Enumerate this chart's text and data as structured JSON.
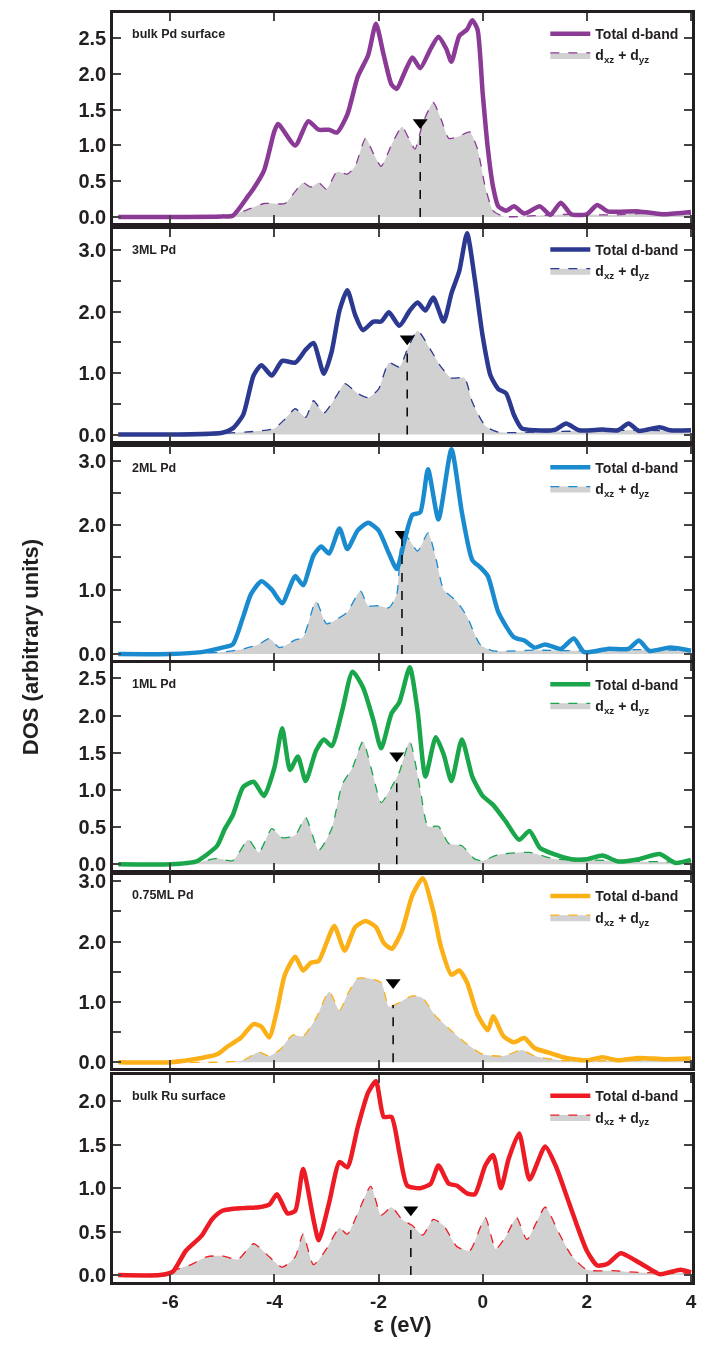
{
  "chart_data": [
    {
      "type": "line",
      "title": "bulk Pd surface",
      "legend": "top right",
      "tick_labels": "y",
      "xlim": [
        -7.1,
        4.02
      ],
      "xticks": [
        -6,
        -4,
        -2,
        0,
        2,
        4
      ],
      "ylim": [
        -0.08,
        2.85
      ],
      "yticks": [
        {
          "value": 0,
          "label": "0.0"
        },
        {
          "value": 0.5,
          "label": "0.5"
        },
        {
          "value": 1,
          "label": "1.0"
        },
        {
          "value": 1.5,
          "label": "1.5"
        },
        {
          "value": 2,
          "label": "2.0"
        },
        {
          "value": 2.5,
          "label": "2.5"
        }
      ],
      "ref_lines": [
        {
          "axis": "x",
          "value": -1.2,
          "color": "#000000",
          "line_style": "dashed"
        }
      ],
      "series": [
        {
          "type": "scatter",
          "marker": "triangle",
          "color": "#000000",
          "x": [
            -1.2
          ],
          "values": [
            1.32
          ]
        },
        {
          "name": "Total d-band",
          "color": "#8b3a96",
          "line_style": "solid",
          "x": [
            -7,
            -5,
            -4.8,
            -4.5,
            -4.4,
            -4.2,
            -4.0,
            -3.93,
            -3.6,
            -3.35,
            -3.15,
            -2.95,
            -2.8,
            -2.6,
            -2.4,
            -2.2,
            -2.05,
            -1.9,
            -1.75,
            -1.65,
            -1.5,
            -1.35,
            -1.2,
            -1.0,
            -0.85,
            -0.7,
            -0.6,
            -0.45,
            -0.3,
            -0.2,
            -0.1,
            0.0,
            0.1,
            0.2,
            0.3,
            0.45,
            0.6,
            0.8,
            1.1,
            1.3,
            1.5,
            1.7,
            2.0,
            2.2,
            2.4,
            3.0,
            3.5,
            4.0
          ],
          "values": [
            0,
            0.01,
            0.02,
            0.3,
            0.4,
            0.65,
            1.2,
            1.3,
            1.0,
            1.34,
            1.22,
            1.22,
            1.18,
            1.43,
            1.96,
            2.26,
            2.7,
            2.26,
            1.85,
            1.79,
            2.02,
            2.23,
            2.08,
            2.35,
            2.52,
            2.35,
            2.17,
            2.53,
            2.62,
            2.75,
            2.62,
            1.73,
            0.95,
            0.42,
            0.15,
            0.09,
            0.15,
            0.05,
            0.15,
            0.03,
            0.2,
            0.04,
            0.04,
            0.17,
            0.08,
            0.08,
            0.04,
            0.07
          ]
        },
        {
          "name": "d$_{xz}$ + d$_{yz}$",
          "type": "area",
          "color": "#8b3a96",
          "line_style": "dashed",
          "x": [
            -7,
            -5,
            -4.6,
            -4.2,
            -3.8,
            -3.6,
            -3.45,
            -3.3,
            -3.15,
            -3.0,
            -2.8,
            -2.6,
            -2.45,
            -2.25,
            -2.1,
            -1.95,
            -1.75,
            -1.55,
            -1.4,
            -1.3,
            -1.15,
            -0.95,
            -0.8,
            -0.65,
            -0.45,
            -0.25,
            -0.1,
            0.05,
            0.2,
            0.4,
            1.0,
            1.7,
            2.5,
            3.3,
            4.0
          ],
          "values": [
            0,
            0,
            0.08,
            0.19,
            0.19,
            0.36,
            0.48,
            0.42,
            0.48,
            0.39,
            0.63,
            0.6,
            0.71,
            1.1,
            0.89,
            0.71,
            1.01,
            1.26,
            1.07,
            0.95,
            1.31,
            1.6,
            1.37,
            1.1,
            1.13,
            1.19,
            0.95,
            0.42,
            0.09,
            0.01,
            0.02,
            0.04,
            0.03,
            0.06,
            0.04
          ]
        }
      ]
    },
    {
      "type": "line",
      "title": "3ML Pd",
      "legend": "top right",
      "tick_labels": "y",
      "xlim": [
        -7.1,
        4.02
      ],
      "xticks": [
        -6,
        -4,
        -2,
        0,
        2,
        4
      ],
      "ylim": [
        -0.1,
        3.35
      ],
      "yticks": [
        {
          "value": 0,
          "label": "0.0"
        },
        {
          "value": 0.5,
          "label": null
        },
        {
          "value": 1,
          "label": "1.0"
        },
        {
          "value": 1.5,
          "label": null
        },
        {
          "value": 2,
          "label": "2.0"
        },
        {
          "value": 2.5,
          "label": null
        },
        {
          "value": 3,
          "label": "3.0"
        }
      ],
      "ref_lines": [
        {
          "axis": "x",
          "value": -1.45,
          "color": "#000000",
          "line_style": "dashed"
        }
      ],
      "series": [
        {
          "type": "scatter",
          "marker": "triangle",
          "color": "#000000",
          "x": [
            -1.45
          ],
          "values": [
            1.56
          ]
        },
        {
          "name": "Total d-band",
          "color": "#2b3990",
          "line_style": "solid",
          "x": [
            -7,
            -5,
            -4.8,
            -4.6,
            -4.4,
            -4.25,
            -4.05,
            -3.85,
            -3.6,
            -3.4,
            -3.25,
            -3.05,
            -2.9,
            -2.75,
            -2.6,
            -2.45,
            -2.3,
            -2.1,
            -1.95,
            -1.8,
            -1.6,
            -1.4,
            -1.25,
            -1.1,
            -0.95,
            -0.75,
            -0.6,
            -0.45,
            -0.3,
            -0.15,
            0.0,
            0.15,
            0.3,
            0.45,
            0.6,
            0.75,
            1.0,
            1.4,
            1.6,
            1.85,
            2.3,
            2.6,
            2.8,
            3.0,
            3.4,
            3.6,
            4.0
          ],
          "values": [
            0,
            0.03,
            0.1,
            0.32,
            0.96,
            1.13,
            0.96,
            1.2,
            1.17,
            1.38,
            1.49,
            0.99,
            1.35,
            2.02,
            2.35,
            1.95,
            1.7,
            1.84,
            1.84,
            1.99,
            1.77,
            2.02,
            2.15,
            2.02,
            2.23,
            1.84,
            2.3,
            2.66,
            3.28,
            2.52,
            1.6,
            0.96,
            0.74,
            0.67,
            0.32,
            0.1,
            0.07,
            0.08,
            0.18,
            0.07,
            0.08,
            0.07,
            0.18,
            0.06,
            0.12,
            0.07,
            0.07
          ]
        },
        {
          "name": "d$_{xz}$ + d$_{yz}$",
          "type": "area",
          "color": "#2b3990",
          "line_style": "dashed",
          "x": [
            -7,
            -5,
            -4.4,
            -4.0,
            -3.8,
            -3.6,
            -3.4,
            -3.25,
            -3.05,
            -2.8,
            -2.65,
            -2.4,
            -2.2,
            -2.0,
            -1.8,
            -1.6,
            -1.45,
            -1.25,
            -1.0,
            -0.8,
            -0.6,
            -0.35,
            -0.2,
            0.05,
            0.3,
            1.0,
            2.0,
            3.0,
            4.0
          ],
          "values": [
            0,
            0.02,
            0.05,
            0.1,
            0.25,
            0.42,
            0.28,
            0.55,
            0.35,
            0.64,
            0.83,
            0.67,
            0.6,
            0.74,
            1.17,
            1.1,
            1.38,
            1.69,
            1.38,
            1.1,
            0.92,
            0.92,
            0.53,
            0.14,
            0.04,
            0.04,
            0.06,
            0.07,
            0.05
          ]
        }
      ]
    },
    {
      "type": "line",
      "title": "2ML Pd",
      "ylabel": "DOS (arbitrary units)",
      "legend": "top right",
      "tick_labels": "y",
      "xlim": [
        -7.1,
        4.02
      ],
      "xticks": [
        -6,
        -4,
        -2,
        0,
        2,
        4
      ],
      "ylim": [
        -0.1,
        3.22
      ],
      "yticks": [
        {
          "value": 0,
          "label": "0.0"
        },
        {
          "value": 0.5,
          "label": null
        },
        {
          "value": 1,
          "label": "1.0"
        },
        {
          "value": 1.5,
          "label": null
        },
        {
          "value": 2,
          "label": "2.0"
        },
        {
          "value": 2.5,
          "label": null
        },
        {
          "value": 3,
          "label": "3.0"
        }
      ],
      "ref_lines": [
        {
          "axis": "x",
          "value": -1.55,
          "color": "#000000",
          "line_style": "dashed"
        }
      ],
      "series": [
        {
          "type": "scatter",
          "marker": "triangle",
          "color": "#000000",
          "x": [
            -1.55
          ],
          "values": [
            1.86
          ]
        },
        {
          "name": "Total d-band",
          "color": "#1b8bd0",
          "line_style": "solid",
          "x": [
            -7,
            -6,
            -5.4,
            -5.0,
            -4.8,
            -4.6,
            -4.45,
            -4.25,
            -4.05,
            -3.85,
            -3.6,
            -3.45,
            -3.25,
            -3.1,
            -2.95,
            -2.75,
            -2.6,
            -2.4,
            -2.2,
            -2.0,
            -1.8,
            -1.65,
            -1.5,
            -1.35,
            -1.2,
            -1.05,
            -0.85,
            -0.6,
            -0.4,
            -0.2,
            -0.05,
            0.1,
            0.3,
            0.6,
            0.8,
            1.0,
            1.2,
            1.5,
            1.75,
            1.95,
            2.4,
            2.8,
            3.0,
            3.2,
            3.6,
            4.0
          ],
          "values": [
            0,
            0,
            0.03,
            0.1,
            0.15,
            0.58,
            0.93,
            1.13,
            1.0,
            0.79,
            1.21,
            1.07,
            1.53,
            1.67,
            1.56,
            1.95,
            1.63,
            1.92,
            2.04,
            1.92,
            1.56,
            1.32,
            1.77,
            2.16,
            2.2,
            2.87,
            2.09,
            3.18,
            2.2,
            1.46,
            1.35,
            1.21,
            0.65,
            0.26,
            0.21,
            0.1,
            0.15,
            0.08,
            0.24,
            0.03,
            0.08,
            0.08,
            0.21,
            0.05,
            0.1,
            0.05
          ]
        },
        {
          "name": "d$_{xz}$ + d$_{yz}$",
          "type": "area",
          "color": "#1b8bd0",
          "line_style": "dashed",
          "x": [
            -7,
            -5,
            -4.6,
            -4.3,
            -4.1,
            -3.9,
            -3.6,
            -3.45,
            -3.2,
            -3.0,
            -2.8,
            -2.6,
            -2.35,
            -2.2,
            -2.0,
            -1.8,
            -1.65,
            -1.55,
            -1.45,
            -1.25,
            -1.05,
            -0.9,
            -0.75,
            -0.5,
            -0.3,
            -0.05,
            0.2,
            1.0,
            2.0,
            3.0,
            4.0
          ],
          "values": [
            0,
            0.03,
            0.08,
            0.15,
            0.24,
            0.1,
            0.22,
            0.26,
            0.82,
            0.47,
            0.54,
            0.65,
            0.98,
            0.75,
            0.75,
            0.72,
            0.93,
            1.77,
            1.81,
            1.6,
            1.88,
            1.49,
            1.0,
            0.82,
            0.58,
            0.15,
            0.05,
            0.06,
            0.05,
            0.07,
            0.05
          ]
        }
      ]
    },
    {
      "type": "line",
      "title": "1ML Pd",
      "legend": "top right",
      "tick_labels": "y",
      "xlim": [
        -7.1,
        4.02
      ],
      "xticks": [
        -6,
        -4,
        -2,
        0,
        2,
        4
      ],
      "ylim": [
        -0.08,
        2.7
      ],
      "yticks": [
        {
          "value": 0,
          "label": "0.0"
        },
        {
          "value": 0.5,
          "label": "0.5"
        },
        {
          "value": 1,
          "label": "1.0"
        },
        {
          "value": 1.5,
          "label": "1.5"
        },
        {
          "value": 2,
          "label": "2.0"
        },
        {
          "value": 2.5,
          "label": "2.5"
        }
      ],
      "ref_lines": [
        {
          "axis": "x",
          "value": -1.65,
          "color": "#000000",
          "line_style": "dashed"
        }
      ],
      "series": [
        {
          "type": "scatter",
          "marker": "triangle",
          "color": "#000000",
          "x": [
            -1.65
          ],
          "values": [
            1.46
          ]
        },
        {
          "name": "Total d-band",
          "color": "#1aa64a",
          "line_style": "solid",
          "x": [
            -7,
            -6,
            -5.5,
            -5.3,
            -5.1,
            -4.95,
            -4.8,
            -4.6,
            -4.4,
            -4.2,
            -4.0,
            -3.85,
            -3.7,
            -3.55,
            -3.4,
            -3.2,
            -3.05,
            -2.9,
            -2.7,
            -2.5,
            -2.3,
            -2.1,
            -1.95,
            -1.75,
            -1.6,
            -1.4,
            -1.25,
            -1.1,
            -0.9,
            -0.75,
            -0.6,
            -0.4,
            -0.2,
            0.0,
            0.2,
            0.45,
            0.7,
            0.9,
            1.1,
            1.4,
            1.7,
            2.0,
            2.3,
            2.6,
            3.0,
            3.4,
            3.7,
            4.0
          ],
          "values": [
            0,
            0,
            0.04,
            0.13,
            0.25,
            0.48,
            0.66,
            1.04,
            1.11,
            0.92,
            1.3,
            1.83,
            1.27,
            1.45,
            1.12,
            1.53,
            1.68,
            1.59,
            2.06,
            2.59,
            2.38,
            1.94,
            1.56,
            2.03,
            2.18,
            2.65,
            2.06,
            1.18,
            1.71,
            1.48,
            1.12,
            1.68,
            1.18,
            0.92,
            0.8,
            0.57,
            0.33,
            0.45,
            0.22,
            0.13,
            0.07,
            0.07,
            0.12,
            0.04,
            0.07,
            0.14,
            0.02,
            0.06
          ]
        },
        {
          "name": "d$_{xz}$ + d$_{yz}$",
          "type": "area",
          "color": "#1aa64a",
          "line_style": "dashed",
          "x": [
            -7,
            -5.8,
            -5.4,
            -5.1,
            -4.8,
            -4.5,
            -4.3,
            -4.05,
            -3.85,
            -3.6,
            -3.4,
            -3.15,
            -2.9,
            -2.7,
            -2.5,
            -2.3,
            -2.1,
            -1.95,
            -1.75,
            -1.6,
            -1.4,
            -1.2,
            -1.05,
            -0.85,
            -0.65,
            -0.4,
            -0.15,
            0.0,
            0.3,
            0.9,
            1.4,
            2.0,
            3.0,
            4.0
          ],
          "values": [
            0,
            0,
            0.04,
            0.08,
            0.05,
            0.33,
            0.16,
            0.48,
            0.36,
            0.39,
            0.63,
            0.19,
            0.48,
            1.07,
            1.3,
            1.65,
            1.18,
            0.83,
            1.04,
            1.24,
            1.65,
            1.01,
            0.51,
            0.51,
            0.28,
            0.25,
            0.07,
            0.05,
            0.13,
            0.16,
            0.07,
            0.06,
            0.04,
            0.03
          ]
        }
      ]
    },
    {
      "type": "line",
      "title": "0.75ML Pd",
      "legend": "top right",
      "tick_labels": "y",
      "xlim": [
        -7.1,
        4.02
      ],
      "xticks": [
        -6,
        -4,
        -2,
        0,
        2,
        4
      ],
      "ylim": [
        -0.1,
        3.1
      ],
      "yticks": [
        {
          "value": 0,
          "label": "0.0"
        },
        {
          "value": 0.5,
          "label": null
        },
        {
          "value": 1,
          "label": "1.0"
        },
        {
          "value": 1.5,
          "label": null
        },
        {
          "value": 2,
          "label": "2.0"
        },
        {
          "value": 2.5,
          "label": null
        },
        {
          "value": 3,
          "label": "3.0"
        }
      ],
      "ref_lines": [
        {
          "axis": "x",
          "value": -1.72,
          "color": "#000000",
          "line_style": "dashed"
        }
      ],
      "series": [
        {
          "type": "scatter",
          "marker": "triangle",
          "color": "#000000",
          "x": [
            -1.72
          ],
          "values": [
            1.32
          ]
        },
        {
          "name": "Total d-band",
          "color": "#fbb017",
          "line_style": "solid",
          "x": [
            -7,
            -6,
            -5.4,
            -5.1,
            -4.9,
            -4.65,
            -4.4,
            -4.25,
            -4.1,
            -3.95,
            -3.8,
            -3.6,
            -3.45,
            -3.3,
            -3.15,
            -3.0,
            -2.85,
            -2.65,
            -2.45,
            -2.25,
            -2.05,
            -1.9,
            -1.75,
            -1.55,
            -1.35,
            -1.15,
            -0.95,
            -0.8,
            -0.6,
            -0.45,
            -0.3,
            -0.1,
            0.1,
            0.2,
            0.4,
            0.6,
            0.8,
            1.0,
            1.3,
            1.6,
            2.0,
            2.3,
            2.6,
            3.0,
            3.5,
            4.0
          ],
          "values": [
            0,
            0,
            0.07,
            0.13,
            0.26,
            0.4,
            0.63,
            0.59,
            0.41,
            0.86,
            1.45,
            1.75,
            1.52,
            1.65,
            1.68,
            1.98,
            2.26,
            1.85,
            2.24,
            2.34,
            2.24,
            1.98,
            1.88,
            2.18,
            2.77,
            3.05,
            2.51,
            1.91,
            1.45,
            1.52,
            1.32,
            0.79,
            0.53,
            0.76,
            0.43,
            0.33,
            0.4,
            0.23,
            0.15,
            0.07,
            0.03,
            0.08,
            0.03,
            0.07,
            0.05,
            0.06
          ]
        },
        {
          "name": "d$_{xz}$ + d$_{yz}$",
          "type": "area",
          "color": "#fbb017",
          "line_style": "dashed",
          "x": [
            -7,
            -5,
            -4.6,
            -4.3,
            -4.1,
            -3.9,
            -3.65,
            -3.45,
            -3.2,
            -2.95,
            -2.75,
            -2.6,
            -2.4,
            -2.2,
            -1.95,
            -1.8,
            -1.6,
            -1.35,
            -1.15,
            -0.9,
            -0.65,
            -0.3,
            0.0,
            0.4,
            0.75,
            1.0,
            1.5,
            2.0,
            3.0,
            4.0
          ],
          "values": [
            0,
            0,
            0.03,
            0.17,
            0.1,
            0.2,
            0.45,
            0.43,
            0.73,
            1.17,
            0.86,
            1.12,
            1.39,
            1.39,
            1.32,
            0.92,
            0.99,
            1.1,
            1.06,
            0.76,
            0.56,
            0.3,
            0.13,
            0.1,
            0.2,
            0.1,
            0.03,
            0.02,
            0.03,
            0.03
          ]
        }
      ]
    },
    {
      "type": "line",
      "title": "bulk Ru surface",
      "xlabel": "ε (eV)",
      "legend": "top right",
      "xlim": [
        -7.1,
        4.02
      ],
      "xticks": [
        -6,
        -4,
        -2,
        0,
        2,
        4
      ],
      "ylim": [
        -0.08,
        2.3
      ],
      "yticks": [
        {
          "value": 0,
          "label": "0.0"
        },
        {
          "value": 0.5,
          "label": "0.5"
        },
        {
          "value": 1,
          "label": "1.0"
        },
        {
          "value": 1.5,
          "label": "1.5"
        },
        {
          "value": 2,
          "label": "2.0"
        }
      ],
      "ref_lines": [
        {
          "axis": "x",
          "value": -1.38,
          "color": "#000000",
          "line_style": "dashed"
        }
      ],
      "series": [
        {
          "type": "scatter",
          "marker": "triangle",
          "color": "#000000",
          "x": [
            -1.38
          ],
          "values": [
            0.75
          ]
        },
        {
          "name": "Total d-band",
          "color": "#ed1c24",
          "line_style": "solid",
          "x": [
            -7,
            -6.2,
            -5.95,
            -5.7,
            -5.4,
            -5.2,
            -5.0,
            -4.6,
            -4.3,
            -4.1,
            -3.95,
            -3.75,
            -3.6,
            -3.45,
            -3.25,
            -3.15,
            -2.95,
            -2.75,
            -2.6,
            -2.4,
            -2.2,
            -2.05,
            -1.9,
            -1.75,
            -1.6,
            -1.45,
            -1.2,
            -1.0,
            -0.85,
            -0.65,
            -0.5,
            -0.3,
            -0.15,
            0.05,
            0.2,
            0.35,
            0.5,
            0.7,
            0.9,
            1.2,
            1.4,
            1.6,
            1.8,
            2.0,
            2.2,
            2.4,
            2.65,
            2.9,
            3.1,
            3.4,
            3.8,
            4.0
          ],
          "values": [
            0,
            0,
            0.04,
            0.28,
            0.45,
            0.64,
            0.74,
            0.77,
            0.78,
            0.81,
            0.93,
            0.71,
            0.74,
            1.22,
            0.64,
            0.4,
            0.83,
            1.3,
            1.24,
            1.7,
            2.1,
            2.23,
            1.82,
            1.82,
            1.41,
            1.03,
            1.0,
            1.05,
            1.26,
            1.05,
            1.03,
            0.94,
            0.93,
            1.26,
            1.38,
            1.0,
            1.34,
            1.63,
            1.1,
            1.48,
            1.26,
            0.93,
            0.59,
            0.28,
            0.11,
            0.13,
            0.25,
            0.18,
            0.11,
            0.01,
            0.06,
            0.03
          ]
        },
        {
          "name": "d$_{xz}$ + d$_{yz}$",
          "type": "area",
          "color": "#ed1c24",
          "line_style": "dashed",
          "x": [
            -7,
            -6.2,
            -6.0,
            -5.6,
            -5.3,
            -5.0,
            -4.7,
            -4.4,
            -4.1,
            -3.85,
            -3.6,
            -3.45,
            -3.25,
            -3.0,
            -2.75,
            -2.6,
            -2.4,
            -2.15,
            -1.95,
            -1.75,
            -1.55,
            -1.35,
            -1.15,
            -0.95,
            -0.75,
            -0.5,
            -0.25,
            0.05,
            0.25,
            0.45,
            0.65,
            0.85,
            1.2,
            1.45,
            1.7,
            2.0,
            2.5,
            3.0,
            4.0
          ],
          "values": [
            0,
            0,
            0.04,
            0.12,
            0.21,
            0.22,
            0.18,
            0.36,
            0.21,
            0.09,
            0.21,
            0.47,
            0.12,
            0.3,
            0.54,
            0.47,
            0.71,
            1.02,
            0.69,
            0.78,
            0.64,
            0.57,
            0.46,
            0.64,
            0.57,
            0.33,
            0.28,
            0.66,
            0.3,
            0.45,
            0.66,
            0.41,
            0.78,
            0.5,
            0.23,
            0.06,
            0.05,
            0.03,
            0.02
          ]
        }
      ]
    }
  ]
}
